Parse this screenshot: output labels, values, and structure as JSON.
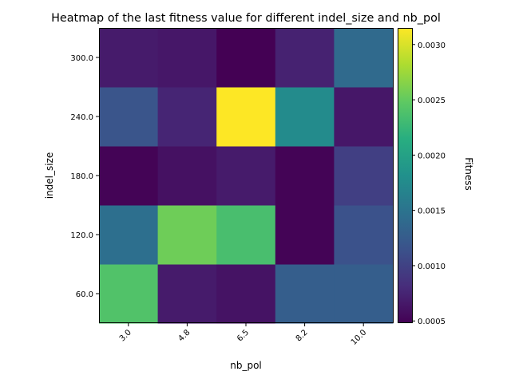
{
  "chart_data": {
    "type": "heatmap",
    "title": "Heatmap of the last fitness value for different indel_size and nb_pol",
    "xlabel": "nb_pol",
    "ylabel": "indel_size",
    "x_categories": [
      "3.0",
      "4.8",
      "6.5",
      "8.2",
      "10.0"
    ],
    "y_categories": [
      "60.0",
      "120.0",
      "180.0",
      "240.0",
      "300.0"
    ],
    "values": [
      [
        0.0024,
        0.00068,
        0.00062,
        0.00127,
        0.00127
      ],
      [
        0.00145,
        0.00255,
        0.00235,
        0.0005,
        0.00115
      ],
      [
        0.0005,
        0.0006,
        0.00068,
        0.0005,
        0.00098
      ],
      [
        0.00118,
        0.00075,
        0.00315,
        0.00175,
        0.00065
      ],
      [
        0.00068,
        0.00065,
        0.00048,
        0.00073,
        0.0014
      ]
    ],
    "colorbar": {
      "label": "Fitness",
      "min": 0.00048,
      "max": 0.00315,
      "ticks": [
        0.0005,
        0.001,
        0.0015,
        0.002,
        0.0025,
        0.003
      ],
      "tick_labels": [
        "0.0005",
        "0.0010",
        "0.0015",
        "0.0020",
        "0.0025",
        "0.0030"
      ]
    },
    "colormap": "viridis",
    "grid": false
  }
}
